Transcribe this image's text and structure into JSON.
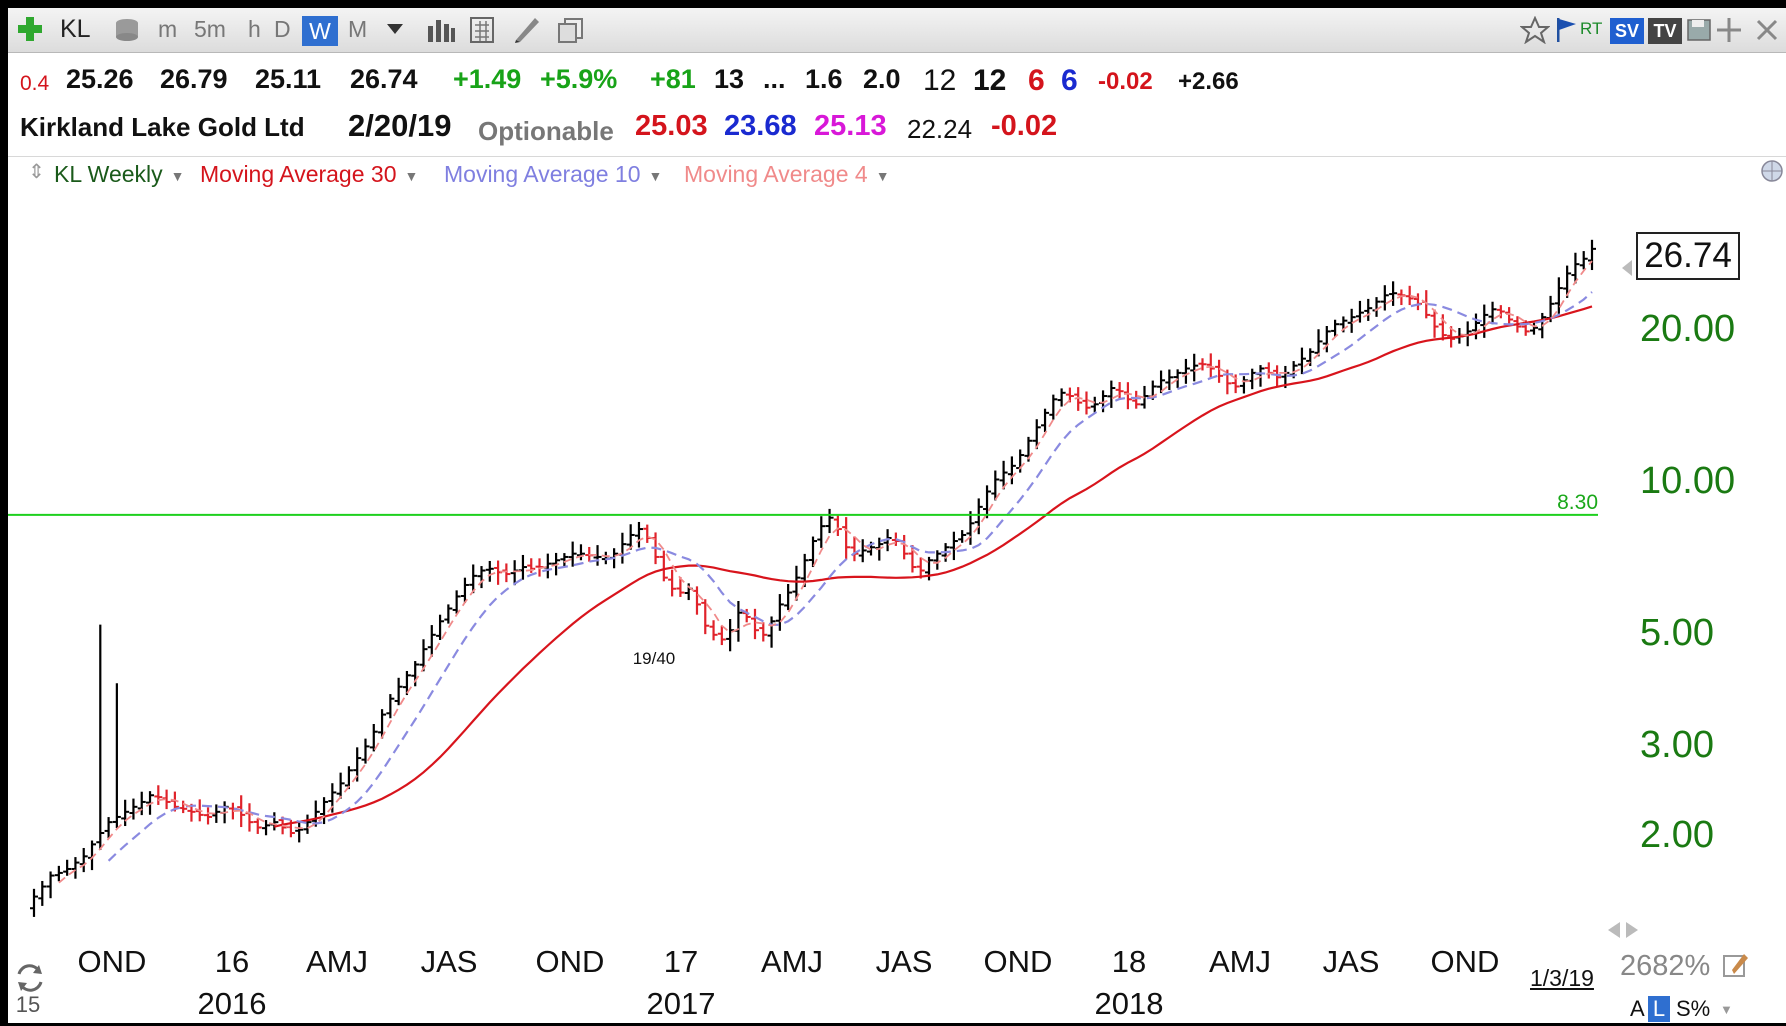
{
  "toolbar": {
    "symbol": "KL",
    "periods": [
      "m",
      "5m",
      "h",
      "D",
      "W",
      "M"
    ],
    "selected_period": "W",
    "rt_label": "RT",
    "sv_label": "SV",
    "tv_label": "TV"
  },
  "quote_line1": {
    "ratio": "0.4",
    "open": "25.26",
    "high": "26.79",
    "low": "25.11",
    "close": "26.74",
    "change": "+1.49",
    "change_pct": "+5.9%",
    "rating": "+81",
    "val_13": "13",
    "ellipsis": "...",
    "val_16": "1.6",
    "val_20": "2.0",
    "val_12a": "12",
    "val_12b": "12",
    "val_6a": "6",
    "val_6b": "6",
    "neg": "-0.02",
    "pos": "+2.66"
  },
  "quote_line2": {
    "company": "Kirkland Lake Gold Ltd",
    "date": "2/20/19",
    "optionable": "Optionable",
    "v1": "25.03",
    "v2": "23.68",
    "v3": "25.13",
    "v4": "22.24",
    "v5": "-0.02"
  },
  "legend": {
    "series": "KL Weekly",
    "ma30": "Moving Average 30",
    "ma10": "Moving Average 10",
    "ma4": "Moving Average 4"
  },
  "colors": {
    "up_bar": "#000000",
    "down_bar": "#e0222a",
    "ma30": "#d8141c",
    "ma10": "#8a8ae0",
    "ma4": "#f08a8a",
    "hline": "#1ed01e",
    "axis_text": "#1a7a12"
  },
  "chart_data": {
    "type": "line",
    "scale": "log",
    "last_price": "26.74",
    "y_ticks": [
      "20.00",
      "10.00",
      "5.00",
      "3.00",
      "2.00"
    ],
    "y_tick_values": [
      20,
      10,
      5,
      3,
      2
    ],
    "ylim": [
      1.35,
      32
    ],
    "hline": {
      "value": 8.3,
      "label": "8.30"
    },
    "annotation": {
      "label": "19/40",
      "value": 4.75
    },
    "x_ticks": [
      "OND",
      "16",
      "AMJ",
      "JAS",
      "OND",
      "17",
      "AMJ",
      "JAS",
      "OND",
      "18",
      "AMJ",
      "JAS",
      "OND"
    ],
    "x_year_labels": [
      "2016",
      "2017",
      "2018"
    ],
    "x_left_label": "15",
    "x_right_label": "1/3/19",
    "weekly_close": [
      1.55,
      1.62,
      1.7,
      1.72,
      1.75,
      1.8,
      1.85,
      1.95,
      2.05,
      2.15,
      2.2,
      2.25,
      2.3,
      2.35,
      2.42,
      2.4,
      2.35,
      2.3,
      2.28,
      2.25,
      2.22,
      2.2,
      2.25,
      2.3,
      2.28,
      2.22,
      2.15,
      2.1,
      2.12,
      2.15,
      2.1,
      2.05,
      2.08,
      2.15,
      2.25,
      2.35,
      2.45,
      2.55,
      2.7,
      2.85,
      3.0,
      3.2,
      3.45,
      3.7,
      3.9,
      4.1,
      4.3,
      4.6,
      4.9,
      5.2,
      5.5,
      5.8,
      6.1,
      6.35,
      6.5,
      6.55,
      6.45,
      6.4,
      6.5,
      6.6,
      6.55,
      6.6,
      6.7,
      6.8,
      6.9,
      7.0,
      7.0,
      6.95,
      6.9,
      6.85,
      7.0,
      7.3,
      7.6,
      7.8,
      7.5,
      6.9,
      6.3,
      6.0,
      5.9,
      6.0,
      5.6,
      5.1,
      4.9,
      4.8,
      5.0,
      5.4,
      5.3,
      5.0,
      4.9,
      5.2,
      5.6,
      5.9,
      6.3,
      6.8,
      7.4,
      7.9,
      8.2,
      7.8,
      7.2,
      7.0,
      7.1,
      7.2,
      7.3,
      7.5,
      7.4,
      7.0,
      6.6,
      6.5,
      6.8,
      7.0,
      7.2,
      7.4,
      7.6,
      8.0,
      8.6,
      9.2,
      9.7,
      10.0,
      10.3,
      10.8,
      11.5,
      12.2,
      13.0,
      13.8,
      14.2,
      14.0,
      13.6,
      13.3,
      13.5,
      14.0,
      14.5,
      14.3,
      13.8,
      13.5,
      14.0,
      14.6,
      15.0,
      15.2,
      15.5,
      15.8,
      16.0,
      16.1,
      15.8,
      15.3,
      14.8,
      14.6,
      15.0,
      15.5,
      15.8,
      15.5,
      15.2,
      15.5,
      16.0,
      16.5,
      17.0,
      17.8,
      18.6,
      19.2,
      19.5,
      19.8,
      20.2,
      20.6,
      21.2,
      21.8,
      22.0,
      21.8,
      21.5,
      21.0,
      20.0,
      19.0,
      18.3,
      18.0,
      18.2,
      18.6,
      19.3,
      20.0,
      20.5,
      20.3,
      19.6,
      19.0,
      18.6,
      18.9,
      19.8,
      21.0,
      22.5,
      24.0,
      25.0,
      25.6,
      26.74
    ]
  },
  "bottom_bar": {
    "zoom": "2682%",
    "a_label": "A",
    "l_label": "L",
    "s_label": "S%"
  }
}
